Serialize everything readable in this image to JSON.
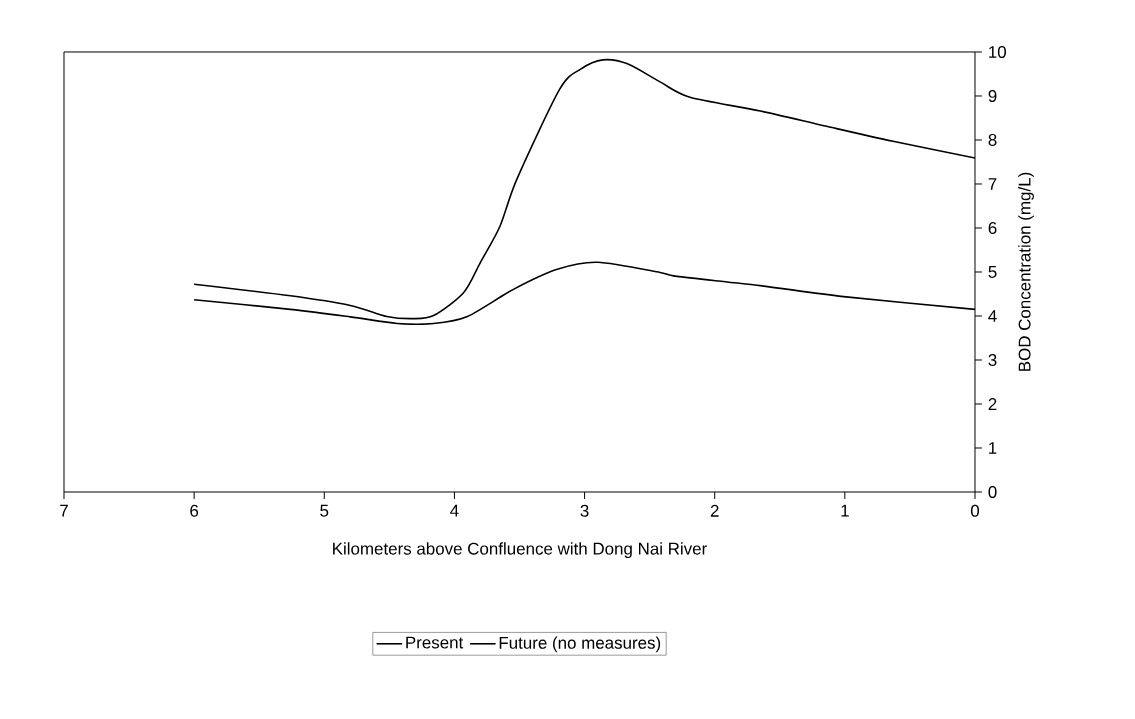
{
  "chart_data": {
    "type": "line",
    "xlabel": "Kilometers above Confluence with Dong Nai River",
    "ylabel": "BOD Concentration (mg/L)",
    "xlim": [
      7,
      0
    ],
    "xticks": [
      7,
      6,
      5,
      4,
      3,
      2,
      1,
      0
    ],
    "ylim": [
      0,
      10
    ],
    "yticks": [
      0,
      1,
      2,
      3,
      4,
      5,
      6,
      7,
      8,
      9,
      10
    ],
    "legend": "bottom",
    "series": [
      {
        "name": "Present",
        "color": "#000000",
        "x": [
          6,
          5.26,
          4.8,
          4.44,
          4.16,
          3.9,
          3.55,
          3.21,
          2.9,
          2.42,
          2.29,
          1.65,
          1.01,
          0
        ],
        "values": [
          4.37,
          4.15,
          3.98,
          3.83,
          3.83,
          3.99,
          4.6,
          5.06,
          5.22,
          4.99,
          4.9,
          4.69,
          4.44,
          4.15
        ]
      },
      {
        "name": "Future (no measures)",
        "color": "#000000",
        "x": [
          6,
          5.26,
          4.8,
          4.52,
          4.32,
          4.16,
          3.93,
          3.8,
          3.65,
          3.52,
          3.19,
          3.03,
          2.86,
          2.67,
          2.42,
          2.19,
          1.65,
          1.14,
          0.63,
          0
        ],
        "values": [
          4.72,
          4.46,
          4.24,
          3.99,
          3.94,
          4.01,
          4.53,
          5.22,
          6.04,
          7.11,
          9.16,
          9.61,
          9.82,
          9.73,
          9.32,
          8.97,
          8.66,
          8.31,
          7.97,
          7.59
        ]
      }
    ]
  }
}
